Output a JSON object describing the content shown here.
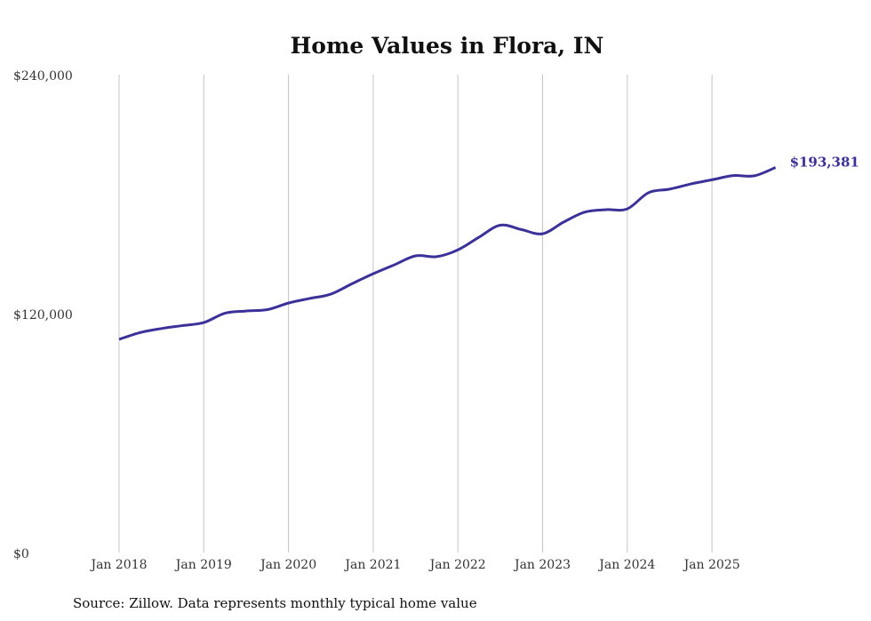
{
  "chart_data": {
    "type": "line",
    "title": "Home Values in Flora, IN",
    "xlabel": "",
    "ylabel": "",
    "ylim": [
      0,
      240000
    ],
    "y_ticks": [
      0,
      120000,
      240000
    ],
    "y_tick_labels": [
      "$0",
      "$120,000",
      "$240,000"
    ],
    "x_ticks": [
      2018,
      2019,
      2020,
      2021,
      2022,
      2023,
      2024,
      2025
    ],
    "x_tick_labels": [
      "Jan 2018",
      "Jan 2019",
      "Jan 2020",
      "Jan 2021",
      "Jan 2022",
      "Jan 2023",
      "Jan 2024",
      "Jan 2025"
    ],
    "xlim": [
      2018,
      2025.75
    ],
    "grid": "vertical",
    "series": [
      {
        "name": "Typical home value",
        "color": "#3b3199",
        "x": [
          2018.0,
          2018.25,
          2018.5,
          2018.75,
          2019.0,
          2019.25,
          2019.5,
          2019.75,
          2020.0,
          2020.25,
          2020.5,
          2020.75,
          2021.0,
          2021.25,
          2021.5,
          2021.75,
          2022.0,
          2022.25,
          2022.5,
          2022.75,
          2023.0,
          2023.25,
          2023.5,
          2023.75,
          2024.0,
          2024.25,
          2024.5,
          2024.75,
          2025.0,
          2025.25,
          2025.5,
          2025.75
        ],
        "values": [
          107100,
          110500,
          112500,
          114000,
          115500,
          120200,
          121300,
          122000,
          125300,
          127600,
          129800,
          135000,
          140000,
          144500,
          149000,
          148600,
          152000,
          158400,
          164400,
          162200,
          160100,
          166000,
          171000,
          172200,
          172600,
          180700,
          182500,
          185100,
          187200,
          189300,
          189200,
          193381
        ]
      }
    ],
    "end_label": "$193,381",
    "source": "Source: Zillow. Data represents monthly typical home value"
  }
}
